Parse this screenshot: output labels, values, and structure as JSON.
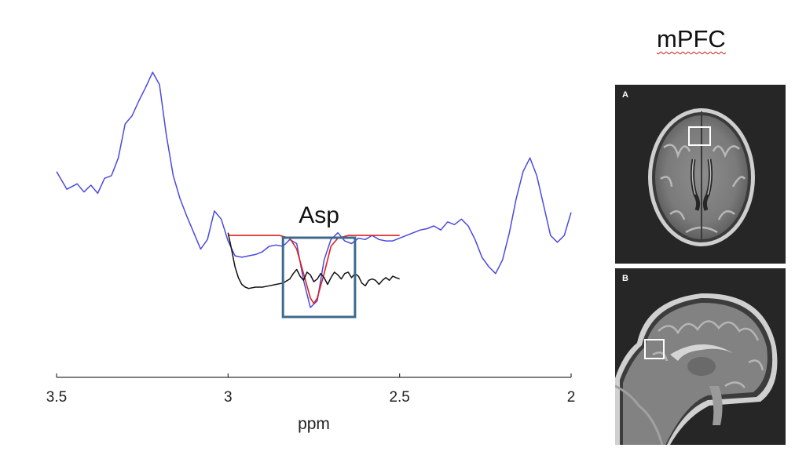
{
  "chart_data": {
    "type": "line",
    "title": "",
    "xlabel": "ppm",
    "ylabel": "",
    "xlim": [
      3.5,
      2.0
    ],
    "x_reversed": true,
    "x_ticks": [
      3.5,
      3.0,
      2.5,
      2.0
    ],
    "x_tick_labels": [
      "3.5",
      "3",
      "2.5",
      "2"
    ],
    "ylim": [
      -1.0,
      1.25
    ],
    "grid": false,
    "legend": "none",
    "annotation": {
      "label": "Asp",
      "x_range": [
        2.84,
        2.63
      ]
    },
    "series": [
      {
        "color": "#4a4ae0",
        "x": [
          3.5,
          3.47,
          3.44,
          3.42,
          3.4,
          3.38,
          3.36,
          3.34,
          3.32,
          3.3,
          3.28,
          3.26,
          3.24,
          3.22,
          3.2,
          3.18,
          3.16,
          3.14,
          3.12,
          3.1,
          3.08,
          3.06,
          3.04,
          3.02,
          3.0,
          2.98,
          2.96,
          2.94,
          2.92,
          2.9,
          2.88,
          2.86,
          2.84,
          2.82,
          2.8,
          2.78,
          2.76,
          2.74,
          2.72,
          2.7,
          2.68,
          2.66,
          2.64,
          2.62,
          2.6,
          2.58,
          2.56,
          2.54,
          2.52,
          2.5,
          2.48,
          2.46,
          2.44,
          2.42,
          2.4,
          2.38,
          2.36,
          2.34,
          2.32,
          2.3,
          2.28,
          2.26,
          2.24,
          2.22,
          2.2,
          2.18,
          2.16,
          2.14,
          2.12,
          2.1,
          2.08,
          2.06,
          2.04,
          2.02,
          2.0
        ],
        "y": [
          0.45,
          0.32,
          0.36,
          0.3,
          0.35,
          0.29,
          0.4,
          0.42,
          0.55,
          0.8,
          0.86,
          0.97,
          1.07,
          1.18,
          1.09,
          0.72,
          0.42,
          0.25,
          0.12,
          0.0,
          -0.12,
          -0.05,
          0.16,
          0.1,
          -0.06,
          -0.17,
          -0.18,
          -0.17,
          -0.16,
          -0.14,
          -0.1,
          -0.09,
          -0.1,
          -0.05,
          -0.08,
          -0.35,
          -0.55,
          -0.5,
          -0.2,
          -0.05,
          0.0,
          -0.06,
          -0.08,
          -0.04,
          -0.05,
          -0.02,
          -0.05,
          -0.06,
          -0.06,
          -0.04,
          -0.02,
          0.0,
          0.02,
          0.03,
          0.05,
          0.02,
          0.08,
          0.06,
          0.1,
          0.05,
          -0.05,
          -0.18,
          -0.25,
          -0.3,
          -0.2,
          0.0,
          0.25,
          0.45,
          0.55,
          0.42,
          0.2,
          -0.02,
          -0.07,
          -0.02,
          0.15
        ]
      },
      {
        "color": "#e02020",
        "x": [
          3.0,
          2.95,
          2.9,
          2.85,
          2.82,
          2.8,
          2.78,
          2.76,
          2.75,
          2.74,
          2.72,
          2.7,
          2.68,
          2.65,
          2.6,
          2.55,
          2.5
        ],
        "y": [
          -0.02,
          -0.02,
          -0.02,
          -0.02,
          -0.04,
          -0.12,
          -0.3,
          -0.48,
          -0.52,
          -0.48,
          -0.3,
          -0.1,
          -0.04,
          -0.02,
          -0.02,
          -0.02,
          -0.02
        ]
      },
      {
        "color": "#111111",
        "x": [
          3.0,
          2.99,
          2.98,
          2.97,
          2.96,
          2.95,
          2.94,
          2.92,
          2.9,
          2.88,
          2.86,
          2.84,
          2.82,
          2.81,
          2.8,
          2.79,
          2.78,
          2.77,
          2.76,
          2.75,
          2.74,
          2.73,
          2.72,
          2.71,
          2.7,
          2.69,
          2.68,
          2.67,
          2.66,
          2.65,
          2.64,
          2.63,
          2.62,
          2.61,
          2.6,
          2.59,
          2.58,
          2.57,
          2.56,
          2.55,
          2.54,
          2.53,
          2.52,
          2.51,
          2.5
        ],
        "y": [
          0.0,
          -0.12,
          -0.25,
          -0.33,
          -0.38,
          -0.4,
          -0.41,
          -0.4,
          -0.4,
          -0.39,
          -0.38,
          -0.37,
          -0.34,
          -0.3,
          -0.27,
          -0.32,
          -0.35,
          -0.29,
          -0.31,
          -0.36,
          -0.34,
          -0.3,
          -0.33,
          -0.38,
          -0.33,
          -0.29,
          -0.31,
          -0.34,
          -0.3,
          -0.29,
          -0.33,
          -0.3,
          -0.32,
          -0.37,
          -0.39,
          -0.35,
          -0.34,
          -0.35,
          -0.38,
          -0.35,
          -0.33,
          -0.35,
          -0.32,
          -0.33,
          -0.34
        ]
      }
    ]
  },
  "region_title": "mPFC",
  "panels": [
    {
      "letter": "A",
      "view": "axial"
    },
    {
      "letter": "B",
      "view": "sagittal"
    }
  ]
}
